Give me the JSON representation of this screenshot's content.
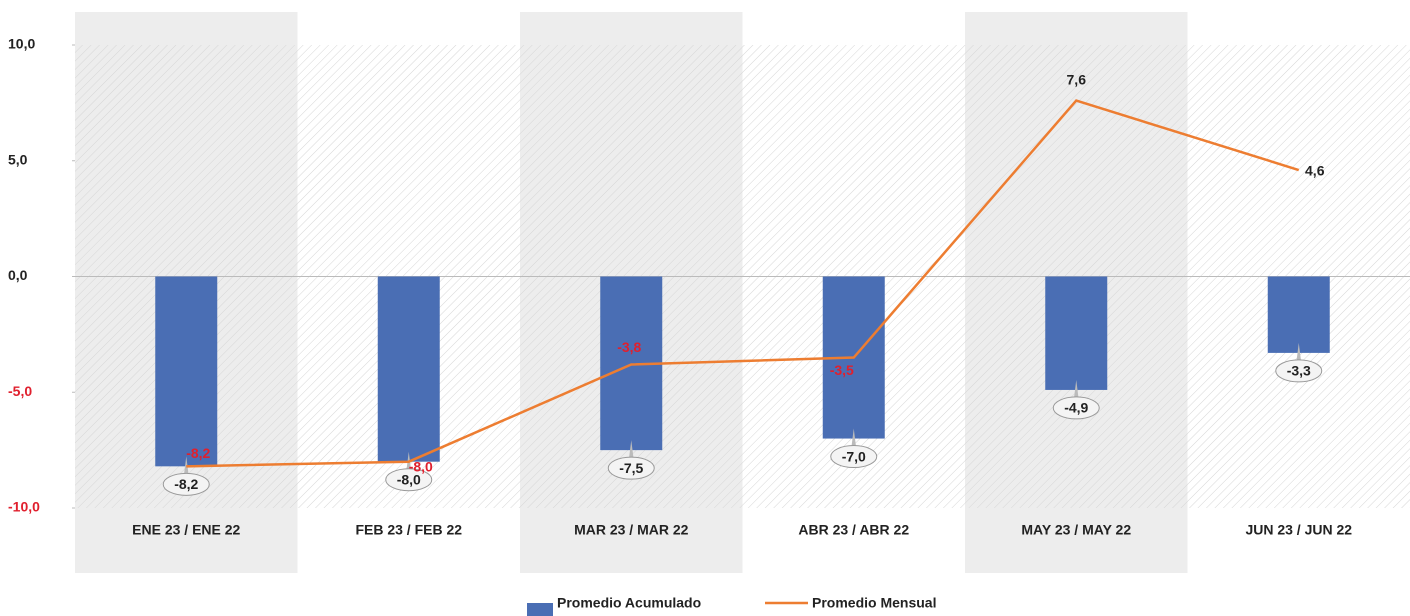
{
  "chart_data": {
    "type": "bar-line",
    "categories": [
      "ENE 23 / ENE 22",
      "FEB 23 / FEB 22",
      "MAR 23 / MAR 22",
      "ABR 23 / ABR 22",
      "MAY 23 / MAY 22",
      "JUN 23 / JUN 22"
    ],
    "series": [
      {
        "name": "Promedio Acumulado",
        "type": "bar",
        "color": "#4a6eb4",
        "values": [
          -8.2,
          -8.0,
          -7.5,
          -7.0,
          -4.9,
          -3.3
        ],
        "value_labels": [
          "-8,2",
          "-8,0",
          "-7,5",
          "-7,0",
          "-4,9",
          "-3,3"
        ]
      },
      {
        "name": "Promedio Mensual",
        "type": "line",
        "color": "#ed7d31",
        "values": [
          -8.2,
          -8.0,
          -3.8,
          -3.5,
          7.6,
          4.6
        ],
        "value_labels": [
          "-8,2",
          "-8,0",
          "-3,8",
          "-3,5",
          "7,6",
          "4,6"
        ]
      }
    ],
    "ylim": [
      -10,
      10
    ],
    "yticks": [
      {
        "value": 10,
        "label": "10,0"
      },
      {
        "value": 5,
        "label": "5,0"
      },
      {
        "value": 0,
        "label": "0,0"
      },
      {
        "value": -5,
        "label": "-5,0"
      },
      {
        "value": -10,
        "label": "-10,0"
      }
    ],
    "negative_label_color": "#e0202e",
    "label_color": "#222222",
    "legend": "bottom"
  }
}
